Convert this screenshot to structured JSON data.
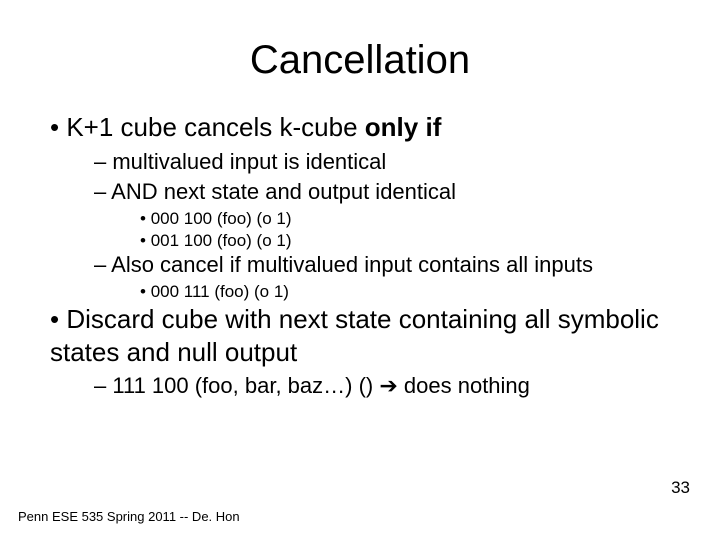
{
  "title": "Cancellation",
  "bullets": {
    "b1_prefix": "K+1 cube cancels k-cube ",
    "b1_bold": "only if",
    "b1_1": "multivalued input is identical",
    "b1_2": "AND next state and output identical",
    "b1_2_a": "000 100 (foo) (o 1)",
    "b1_2_b": "001 100 (foo) (o 1)",
    "b1_3": "Also cancel if multivalued input contains all inputs",
    "b1_3_a": "000 111 (foo) (o 1)",
    "b2": "Discard cube with next state containing all symbolic states and null output",
    "b2_1_prefix": "111 100 (foo, bar, baz…) () ",
    "b2_1_arrow": "➔",
    "b2_1_suffix": " does nothing"
  },
  "footer": "Penn ESE 535 Spring 2011 -- De. Hon",
  "page_number": "33",
  "styling": {
    "background_color": "#ffffff",
    "text_color": "#000000",
    "title_fontsize": 40,
    "l1_fontsize": 26,
    "l2_fontsize": 22,
    "l3_fontsize": 17,
    "footer_fontsize": 13,
    "font_family": "Arial"
  }
}
